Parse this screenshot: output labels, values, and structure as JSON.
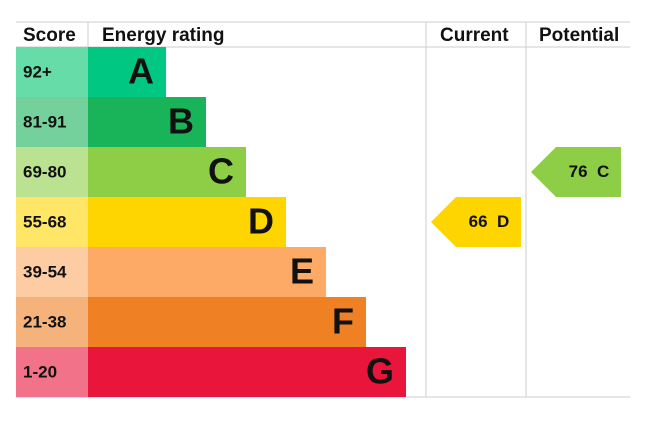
{
  "header": {
    "score": "Score",
    "rating": "Energy rating",
    "current": "Current",
    "potential": "Potential"
  },
  "bands": [
    {
      "range": "92+",
      "letter": "A",
      "color": "#00c781",
      "light": "#66dca8"
    },
    {
      "range": "81-91",
      "letter": "B",
      "color": "#19b459",
      "light": "#74d19b"
    },
    {
      "range": "69-80",
      "letter": "C",
      "color": "#8dce46",
      "light": "#bbe290"
    },
    {
      "range": "55-68",
      "letter": "D",
      "color": "#ffd500",
      "light": "#ffe666"
    },
    {
      "range": "39-54",
      "letter": "E",
      "color": "#fcaa65",
      "light": "#fdcca3"
    },
    {
      "range": "21-38",
      "letter": "F",
      "color": "#ef8023",
      "light": "#f5b37b"
    },
    {
      "range": "1-20",
      "letter": "G",
      "color": "#e9153b",
      "light": "#f27389"
    }
  ],
  "current": {
    "score": 66,
    "band": "D"
  },
  "potential": {
    "score": 76,
    "band": "C"
  }
}
